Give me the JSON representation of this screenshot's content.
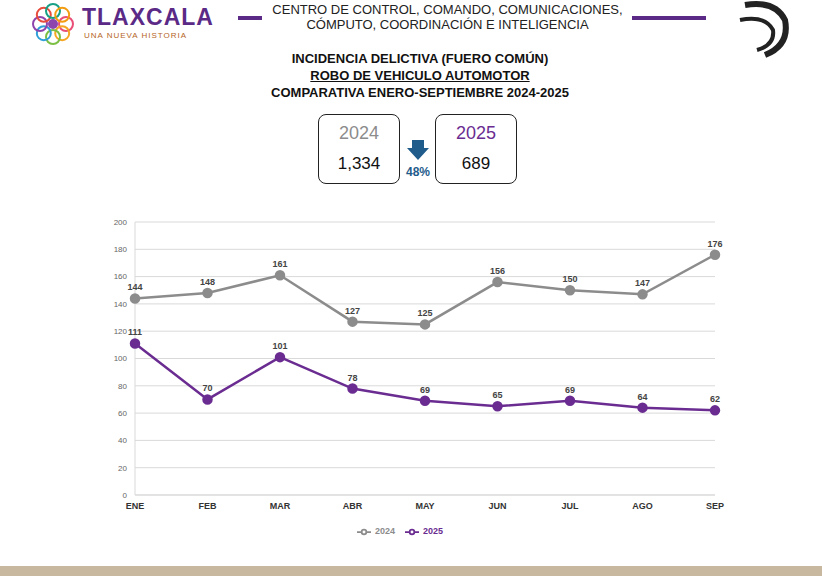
{
  "header": {
    "brand": "TLAXCALA",
    "slogan": "UNA NUEVA HISTORIA",
    "center_lines": [
      "CENTRO DE CONTROL, COMANDO, COMUNICACIONES,",
      "CÓMPUTO, COORDINACIÓN E INTELIGENCIA"
    ]
  },
  "summary": {
    "boxes": [
      {
        "year": "2024",
        "total": {
          "value": 1334,
          "label": "1,334"
        }
      },
      {
        "year": "2025",
        "total": {
          "value": 689,
          "label": "689"
        }
      }
    ],
    "change": {
      "value": 48,
      "label": "48%"
    }
  },
  "chart_data": {
    "type": "line",
    "title": "INCIDENCIA DELICTIVA (FUERO COMÚN)",
    "subtitle": [
      "ROBO DE VEHICULO AUTOMOTOR",
      "COMPARATIVA ENERO-SEPTIEMBRE 2024-2025"
    ],
    "categories": [
      "ENE",
      "FEB",
      "MAR",
      "ABR",
      "MAY",
      "JUN",
      "JUL",
      "AGO",
      "SEP"
    ],
    "series": [
      {
        "name": "2024",
        "color": "#8c8c8c",
        "values": [
          144,
          148,
          161,
          127,
          125,
          156,
          150,
          147,
          176
        ]
      },
      {
        "name": "2025",
        "color": "#6a2c91",
        "values": [
          111,
          70,
          101,
          78,
          69,
          65,
          69,
          64,
          62
        ]
      }
    ],
    "ylim": [
      0,
      200
    ],
    "yticks": [
      0,
      20,
      40,
      60,
      80,
      100,
      120,
      140,
      160,
      180,
      200
    ],
    "grid": true,
    "legend": "bottom",
    "data_labels": true,
    "marker": "circle",
    "line_style": "solid"
  }
}
